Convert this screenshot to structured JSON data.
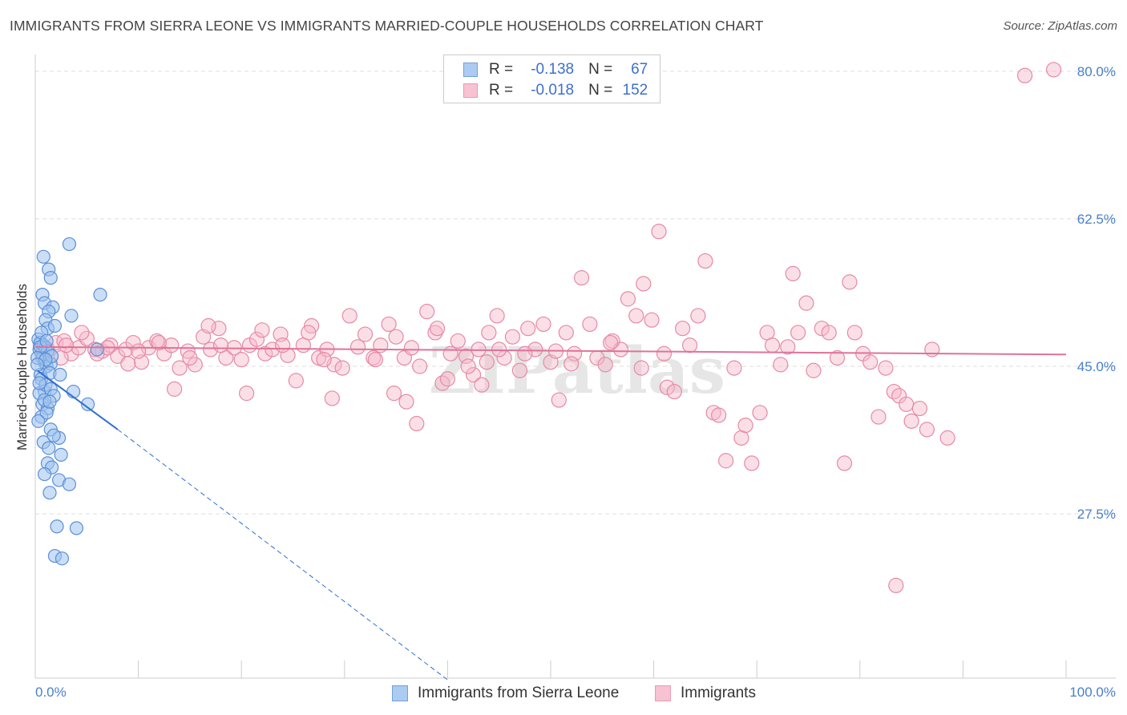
{
  "title": "IMMIGRANTS FROM SIERRA LEONE VS IMMIGRANTS MARRIED-COUPLE HOUSEHOLDS CORRELATION CHART",
  "source": "Source: ZipAtlas.com",
  "watermark": "ZIPatlas",
  "legend_stats": [
    {
      "r_label": "R =",
      "r_value": "-0.138",
      "n_label": "N =",
      "n_value": "67"
    },
    {
      "r_label": "R =",
      "r_value": "-0.018",
      "n_label": "N =",
      "n_value": "152"
    }
  ],
  "bottom_legend": [
    "Immigrants from Sierra Leone",
    "Immigrants"
  ],
  "colors": {
    "series1_fill": "#9ec3ee",
    "series1_stroke": "#5b8fd6",
    "series1_line": "#2f6fd0",
    "series2_fill": "#f6b8ca",
    "series2_stroke": "#e58aa6",
    "series2_line": "#e0729a",
    "axis_text": "#4a7fcb",
    "grid": "#dddddd"
  },
  "chart_data": {
    "type": "scatter",
    "xlabel": "",
    "ylabel": "Married-couple Households",
    "xlim": [
      0,
      100
    ],
    "ylim": [
      8,
      82
    ],
    "x_tick_labels": [
      {
        "value": 0,
        "label": "0.0%"
      },
      {
        "value": 100,
        "label": "100.0%"
      }
    ],
    "y_ticks": [
      {
        "value": 27.5,
        "label": "27.5%"
      },
      {
        "value": 45.0,
        "label": "45.0%"
      },
      {
        "value": 62.5,
        "label": "62.5%"
      },
      {
        "value": 80.0,
        "label": "80.0%"
      }
    ],
    "grid": "horizontal dashed",
    "series": [
      {
        "name": "Immigrants from Sierra Leone",
        "r": -0.138,
        "n": 67,
        "trend": {
          "x0": 0.2,
          "y0": 44.5,
          "x1": 8.0,
          "y1": 37.5,
          "dashed_to_x": 40.0,
          "dashed_to_y": 7.8
        },
        "points": [
          [
            0.3,
            48.2
          ],
          [
            0.5,
            47.8
          ],
          [
            0.4,
            47.0
          ],
          [
            0.6,
            46.5
          ],
          [
            0.8,
            47.5
          ],
          [
            1.0,
            47.2
          ],
          [
            1.2,
            46.8
          ],
          [
            0.7,
            46.0
          ],
          [
            0.9,
            45.5
          ],
          [
            1.1,
            45.0
          ],
          [
            1.5,
            45.3
          ],
          [
            1.6,
            46.2
          ],
          [
            0.5,
            44.0
          ],
          [
            0.6,
            43.5
          ],
          [
            0.9,
            42.0
          ],
          [
            0.4,
            41.8
          ],
          [
            0.7,
            40.5
          ],
          [
            1.2,
            40.0
          ],
          [
            0.6,
            39.0
          ],
          [
            1.1,
            39.5
          ],
          [
            0.3,
            38.5
          ],
          [
            0.8,
            36.0
          ],
          [
            1.5,
            37.5
          ],
          [
            2.3,
            36.5
          ],
          [
            1.8,
            36.8
          ],
          [
            1.3,
            35.3
          ],
          [
            2.5,
            34.5
          ],
          [
            1.2,
            33.5
          ],
          [
            1.6,
            33.0
          ],
          [
            0.9,
            32.2
          ],
          [
            2.3,
            31.5
          ],
          [
            3.3,
            31.0
          ],
          [
            1.4,
            30.0
          ],
          [
            2.1,
            26.0
          ],
          [
            4.0,
            25.8
          ],
          [
            1.9,
            22.5
          ],
          [
            2.6,
            22.2
          ],
          [
            0.8,
            58.0
          ],
          [
            1.3,
            56.5
          ],
          [
            1.5,
            55.5
          ],
          [
            3.3,
            59.5
          ],
          [
            0.7,
            53.5
          ],
          [
            0.9,
            52.5
          ],
          [
            1.7,
            52.0
          ],
          [
            1.3,
            51.5
          ],
          [
            3.5,
            51.0
          ],
          [
            1.0,
            50.5
          ],
          [
            1.2,
            49.5
          ],
          [
            0.6,
            49.0
          ],
          [
            1.9,
            49.8
          ],
          [
            6.3,
            53.5
          ],
          [
            0.5,
            47.3
          ],
          [
            1.1,
            48.0
          ],
          [
            0.2,
            46.0
          ],
          [
            1.0,
            45.8
          ],
          [
            1.4,
            44.2
          ],
          [
            2.4,
            44.0
          ],
          [
            1.0,
            42.8
          ],
          [
            1.5,
            42.3
          ],
          [
            1.8,
            41.5
          ],
          [
            3.7,
            42.0
          ],
          [
            5.1,
            40.5
          ],
          [
            0.9,
            41.0
          ],
          [
            1.4,
            40.8
          ],
          [
            0.2,
            45.2
          ],
          [
            0.4,
            43.0
          ],
          [
            6.0,
            47.0
          ]
        ]
      },
      {
        "name": "Immigrants",
        "r": -0.018,
        "n": 152,
        "trend": {
          "x0": 0.0,
          "y0": 47.3,
          "x1": 100.0,
          "y1": 46.4
        },
        "points": [
          [
            0.5,
            47.5
          ],
          [
            1.2,
            47.0
          ],
          [
            2.0,
            47.8
          ],
          [
            2.8,
            48.0
          ],
          [
            3.5,
            46.5
          ],
          [
            4.2,
            47.2
          ],
          [
            5.0,
            48.3
          ],
          [
            5.8,
            47.0
          ],
          [
            6.5,
            46.8
          ],
          [
            7.3,
            47.5
          ],
          [
            8.0,
            46.2
          ],
          [
            8.8,
            47.0
          ],
          [
            9.5,
            47.8
          ],
          [
            10.3,
            45.5
          ],
          [
            11.0,
            47.2
          ],
          [
            11.8,
            48.0
          ],
          [
            12.5,
            46.5
          ],
          [
            13.2,
            47.5
          ],
          [
            14.0,
            44.8
          ],
          [
            14.8,
            46.8
          ],
          [
            15.5,
            45.2
          ],
          [
            16.3,
            48.5
          ],
          [
            17.0,
            47.0
          ],
          [
            17.8,
            49.5
          ],
          [
            18.5,
            46.0
          ],
          [
            19.3,
            47.2
          ],
          [
            20.0,
            45.8
          ],
          [
            20.8,
            47.5
          ],
          [
            21.5,
            48.2
          ],
          [
            22.3,
            46.5
          ],
          [
            23.0,
            47.0
          ],
          [
            23.8,
            48.8
          ],
          [
            24.5,
            46.3
          ],
          [
            25.3,
            43.3
          ],
          [
            26.0,
            47.5
          ],
          [
            26.8,
            49.8
          ],
          [
            27.5,
            46.0
          ],
          [
            28.3,
            47.0
          ],
          [
            29.0,
            45.2
          ],
          [
            29.8,
            44.8
          ],
          [
            30.5,
            51.0
          ],
          [
            31.3,
            47.3
          ],
          [
            32.0,
            48.8
          ],
          [
            32.8,
            46.0
          ],
          [
            33.5,
            47.5
          ],
          [
            34.3,
            50.0
          ],
          [
            35.0,
            48.5
          ],
          [
            35.8,
            46.0
          ],
          [
            36.5,
            47.2
          ],
          [
            37.3,
            45.0
          ],
          [
            38.0,
            51.5
          ],
          [
            38.8,
            49.0
          ],
          [
            39.5,
            43.0
          ],
          [
            40.3,
            46.5
          ],
          [
            41.0,
            48.0
          ],
          [
            41.8,
            46.2
          ],
          [
            42.5,
            44.0
          ],
          [
            43.3,
            42.8
          ],
          [
            44.0,
            49.0
          ],
          [
            44.8,
            51.0
          ],
          [
            45.5,
            46.0
          ],
          [
            46.3,
            48.5
          ],
          [
            47.0,
            44.5
          ],
          [
            47.8,
            49.5
          ],
          [
            48.5,
            47.0
          ],
          [
            49.3,
            50.0
          ],
          [
            50.0,
            45.5
          ],
          [
            50.8,
            41.0
          ],
          [
            51.5,
            49.0
          ],
          [
            52.3,
            46.5
          ],
          [
            53.0,
            55.5
          ],
          [
            53.8,
            50.0
          ],
          [
            54.5,
            46.0
          ],
          [
            55.3,
            45.2
          ],
          [
            56.0,
            48.0
          ],
          [
            56.8,
            47.0
          ],
          [
            57.5,
            53.0
          ],
          [
            58.3,
            51.0
          ],
          [
            59.0,
            54.8
          ],
          [
            59.8,
            50.5
          ],
          [
            60.5,
            61.0
          ],
          [
            61.3,
            42.5
          ],
          [
            62.0,
            42.0
          ],
          [
            62.8,
            49.5
          ],
          [
            63.5,
            47.5
          ],
          [
            64.3,
            51.0
          ],
          [
            65.0,
            57.5
          ],
          [
            65.8,
            39.5
          ],
          [
            66.3,
            39.2
          ],
          [
            67.0,
            33.8
          ],
          [
            67.8,
            44.8
          ],
          [
            68.5,
            36.5
          ],
          [
            68.9,
            38.0
          ],
          [
            69.5,
            33.5
          ],
          [
            70.3,
            39.5
          ],
          [
            71.0,
            49.0
          ],
          [
            71.5,
            47.5
          ],
          [
            72.3,
            45.2
          ],
          [
            73.0,
            47.3
          ],
          [
            73.5,
            56.0
          ],
          [
            74.0,
            49.0
          ],
          [
            74.8,
            52.5
          ],
          [
            75.5,
            44.5
          ],
          [
            76.3,
            49.5
          ],
          [
            77.0,
            49.0
          ],
          [
            77.8,
            46.0
          ],
          [
            78.5,
            33.5
          ],
          [
            79.0,
            55.0
          ],
          [
            79.5,
            49.0
          ],
          [
            80.3,
            46.5
          ],
          [
            81.0,
            45.5
          ],
          [
            81.8,
            39.0
          ],
          [
            82.5,
            44.8
          ],
          [
            83.3,
            42.0
          ],
          [
            83.8,
            41.5
          ],
          [
            84.5,
            40.5
          ],
          [
            85.0,
            38.5
          ],
          [
            85.8,
            40.0
          ],
          [
            86.5,
            37.5
          ],
          [
            87.0,
            47.0
          ],
          [
            88.5,
            36.5
          ],
          [
            2.5,
            46.0
          ],
          [
            3.0,
            47.5
          ],
          [
            4.5,
            49.0
          ],
          [
            6.0,
            46.5
          ],
          [
            7.0,
            47.2
          ],
          [
            9.0,
            45.3
          ],
          [
            10.0,
            46.8
          ],
          [
            12.0,
            47.8
          ],
          [
            13.5,
            42.3
          ],
          [
            15.0,
            46.0
          ],
          [
            16.8,
            49.8
          ],
          [
            18.0,
            47.5
          ],
          [
            20.5,
            41.8
          ],
          [
            22.0,
            49.3
          ],
          [
            24.0,
            47.5
          ],
          [
            26.5,
            49.0
          ],
          [
            28.0,
            45.8
          ],
          [
            28.8,
            41.2
          ],
          [
            33.0,
            45.8
          ],
          [
            34.8,
            41.8
          ],
          [
            36.0,
            40.8
          ],
          [
            37.0,
            38.2
          ],
          [
            39.0,
            49.5
          ],
          [
            40.0,
            43.5
          ],
          [
            42.0,
            45.0
          ],
          [
            43.8,
            45.5
          ],
          [
            45.0,
            47.0
          ],
          [
            47.5,
            46.5
          ],
          [
            50.5,
            46.8
          ],
          [
            52.0,
            45.3
          ],
          [
            96.0,
            79.5
          ],
          [
            98.8,
            80.2
          ],
          [
            83.5,
            19.0
          ],
          [
            43.0,
            47.0
          ],
          [
            55.8,
            47.8
          ],
          [
            58.8,
            44.8
          ],
          [
            61.0,
            46.5
          ]
        ]
      }
    ]
  }
}
